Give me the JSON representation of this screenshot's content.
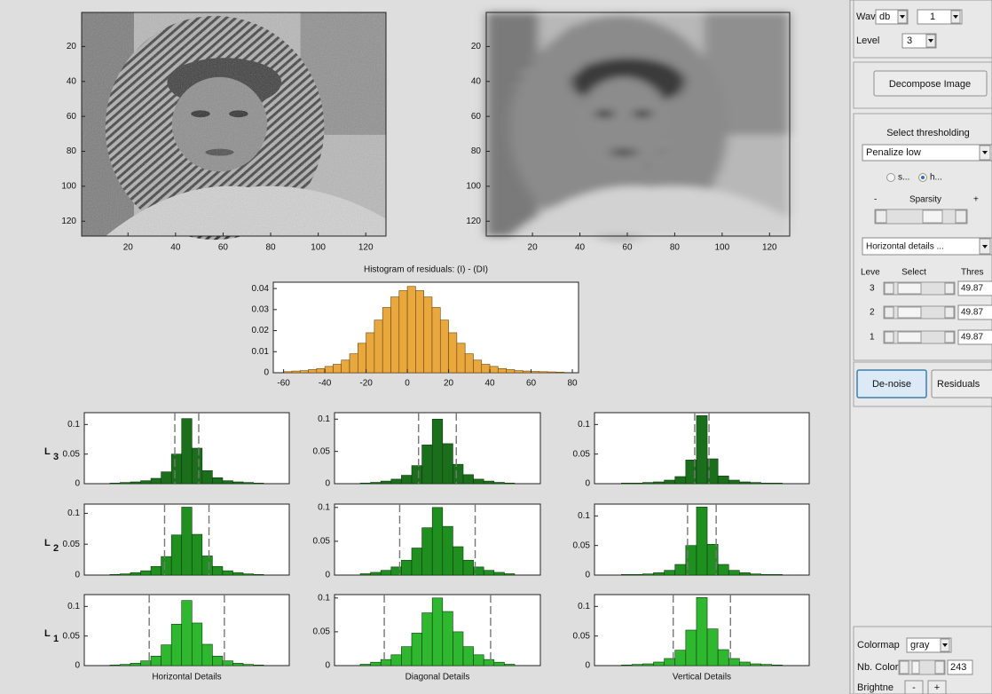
{
  "panel": {
    "wavelet_label": "Wavelet",
    "wavelet": "db",
    "wavelet_order": 1,
    "level_label": "Level",
    "level": 3,
    "decompose": "Decompose Image",
    "select_thresholding": "Select thresholding",
    "method": "Penalize low",
    "soft": "s...",
    "hard": "h...",
    "minus": "-",
    "sparsity": "Sparsity",
    "plus": "+",
    "direction": "Horizontal details ...",
    "headers": [
      "Leve",
      "Select",
      "Thres"
    ],
    "levels": [
      {
        "level": 3,
        "threshold": 49.87
      },
      {
        "level": 2,
        "threshold": 49.87
      },
      {
        "level": 1,
        "threshold": 49.87
      }
    ],
    "denoise": "De-noise",
    "residuals": "Residuals",
    "colormap_label": "Colormap",
    "colormap": "gray",
    "nb_colors_label": "Nb. Color",
    "nb_colors": 243,
    "brightness_label": "Brightne",
    "bright_minus": "-",
    "bright_plus": "+"
  },
  "images": {
    "xlim": [
      0.5,
      128.5
    ],
    "ylim": [
      0.5,
      128.5
    ],
    "xticks": [
      20,
      40,
      60,
      80,
      100,
      120
    ],
    "yticks": [
      20,
      40,
      60,
      80,
      100,
      120
    ]
  },
  "histogram": {
    "type": "histogram",
    "title": "Histogram of residuals: (I) - (DI)",
    "color": "#e8a83e",
    "bins": [
      -60,
      -56,
      -52,
      -48,
      -44,
      -40,
      -36,
      -32,
      -28,
      -24,
      -20,
      -16,
      -12,
      -8,
      -4,
      0,
      4,
      8,
      12,
      16,
      20,
      24,
      28,
      32,
      36,
      40,
      44,
      48,
      52,
      56,
      60,
      64,
      68,
      72,
      76
    ],
    "values": [
      0.0005,
      0.0008,
      0.001,
      0.0015,
      0.002,
      0.003,
      0.004,
      0.006,
      0.009,
      0.014,
      0.019,
      0.025,
      0.031,
      0.036,
      0.039,
      0.041,
      0.039,
      0.036,
      0.031,
      0.025,
      0.019,
      0.014,
      0.009,
      0.006,
      0.004,
      0.003,
      0.002,
      0.0015,
      0.001,
      0.0008,
      0.0006,
      0.0005,
      0.0004,
      0.0003
    ],
    "xlim": [
      -65,
      83
    ],
    "ylim": [
      0,
      0.043
    ],
    "xticks": [
      -60,
      -40,
      -20,
      0,
      20,
      40,
      60,
      80
    ],
    "yticks": [
      0,
      0.01,
      0.02,
      0.03,
      0.04
    ]
  },
  "details": {
    "type": "histogram",
    "columns": [
      "Horizontal Details",
      "Diagonal Details",
      "Vertical Details"
    ],
    "row_labels": [
      {
        "text": "L",
        "level": 3
      },
      {
        "text": "L",
        "level": 2
      },
      {
        "text": "L",
        "level": 1
      }
    ],
    "bins": [
      -45,
      -39,
      -33,
      -27,
      -21,
      -15,
      -9,
      -3,
      3,
      9,
      15,
      21,
      27,
      33,
      39,
      45
    ],
    "xlim": [
      -60,
      60
    ],
    "yticks": [
      0,
      0.05,
      0.1
    ],
    "plots": [
      {
        "color": "#1b6e1b",
        "ylim": [
          0,
          0.12
        ],
        "thresholds": [
          -7,
          7
        ],
        "values": [
          0.001,
          0.002,
          0.003,
          0.005,
          0.009,
          0.02,
          0.05,
          0.11,
          0.06,
          0.022,
          0.01,
          0.005,
          0.003,
          0.002,
          0.001
        ]
      },
      {
        "color": "#1b6e1b",
        "ylim": [
          0,
          0.11
        ],
        "thresholds": [
          -11,
          11
        ],
        "values": [
          0.001,
          0.002,
          0.004,
          0.007,
          0.013,
          0.028,
          0.06,
          0.1,
          0.062,
          0.03,
          0.014,
          0.007,
          0.004,
          0.002,
          0.001
        ]
      },
      {
        "color": "#1b6e1b",
        "ylim": [
          0,
          0.12
        ],
        "thresholds": [
          -4,
          4
        ],
        "values": [
          0.001,
          0.001,
          0.002,
          0.003,
          0.006,
          0.012,
          0.04,
          0.115,
          0.042,
          0.013,
          0.006,
          0.003,
          0.002,
          0.001,
          0.001
        ]
      },
      {
        "color": "#1f901f",
        "ylim": [
          0,
          0.115
        ],
        "thresholds": [
          -13,
          13
        ],
        "values": [
          0.001,
          0.002,
          0.004,
          0.007,
          0.014,
          0.03,
          0.065,
          0.11,
          0.066,
          0.031,
          0.014,
          0.007,
          0.004,
          0.002,
          0.001
        ]
      },
      {
        "color": "#1f901f",
        "ylim": [
          0,
          0.105
        ],
        "thresholds": [
          -22,
          22
        ],
        "values": [
          0.002,
          0.004,
          0.007,
          0.012,
          0.022,
          0.04,
          0.07,
          0.1,
          0.072,
          0.042,
          0.022,
          0.012,
          0.007,
          0.004,
          0.002
        ]
      },
      {
        "color": "#1f901f",
        "ylim": [
          0,
          0.12
        ],
        "thresholds": [
          -8,
          8
        ],
        "values": [
          0.001,
          0.001,
          0.002,
          0.004,
          0.008,
          0.018,
          0.05,
          0.115,
          0.052,
          0.018,
          0.008,
          0.004,
          0.002,
          0.001,
          0.001
        ]
      },
      {
        "color": "#2fb82f",
        "ylim": [
          0,
          0.12
        ],
        "thresholds": [
          -22,
          22
        ],
        "values": [
          0.001,
          0.002,
          0.004,
          0.008,
          0.016,
          0.035,
          0.07,
          0.11,
          0.072,
          0.036,
          0.016,
          0.008,
          0.004,
          0.002,
          0.001
        ]
      },
      {
        "color": "#2fb82f",
        "ylim": [
          0,
          0.105
        ],
        "thresholds": [
          -31,
          31
        ],
        "values": [
          0.002,
          0.005,
          0.009,
          0.016,
          0.028,
          0.048,
          0.078,
          0.1,
          0.08,
          0.05,
          0.028,
          0.016,
          0.009,
          0.005,
          0.002
        ]
      },
      {
        "color": "#2fb82f",
        "ylim": [
          0,
          0.12
        ],
        "thresholds": [
          -16,
          16
        ],
        "values": [
          0.001,
          0.002,
          0.003,
          0.006,
          0.012,
          0.026,
          0.06,
          0.115,
          0.062,
          0.027,
          0.012,
          0.006,
          0.003,
          0.002,
          0.001
        ]
      }
    ]
  }
}
